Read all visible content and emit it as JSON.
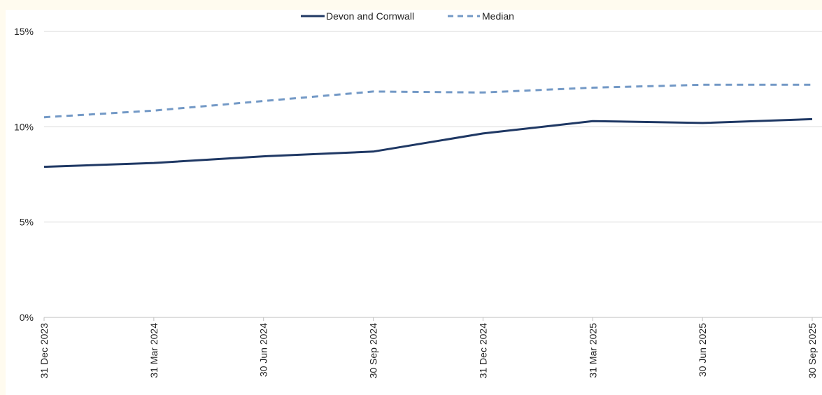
{
  "chart_data": {
    "type": "line",
    "title": "",
    "xlabel": "",
    "ylabel": "",
    "categories": [
      "31 Dec 2023",
      "31 Mar 2024",
      "30 Jun 2024",
      "30 Sep 2024",
      "31 Dec 2024",
      "31 Mar 2025",
      "30 Jun 2025",
      "30 Sep 2025"
    ],
    "series": [
      {
        "name": "Devon and Cornwall",
        "values": [
          7.9,
          8.1,
          8.45,
          8.7,
          9.65,
          10.3,
          10.2,
          10.4
        ],
        "color": "#1f3864",
        "style": "solid"
      },
      {
        "name": "Median",
        "values": [
          10.5,
          10.85,
          11.35,
          11.85,
          11.8,
          12.05,
          12.2,
          12.2
        ],
        "color": "#7399c6",
        "style": "dashed"
      }
    ],
    "ylim": [
      0,
      15
    ],
    "yticks": [
      0,
      5,
      10,
      15
    ],
    "ytick_labels": [
      "0%",
      "5%",
      "10%",
      "15%"
    ],
    "grid": true,
    "legend_position": "top-center"
  }
}
